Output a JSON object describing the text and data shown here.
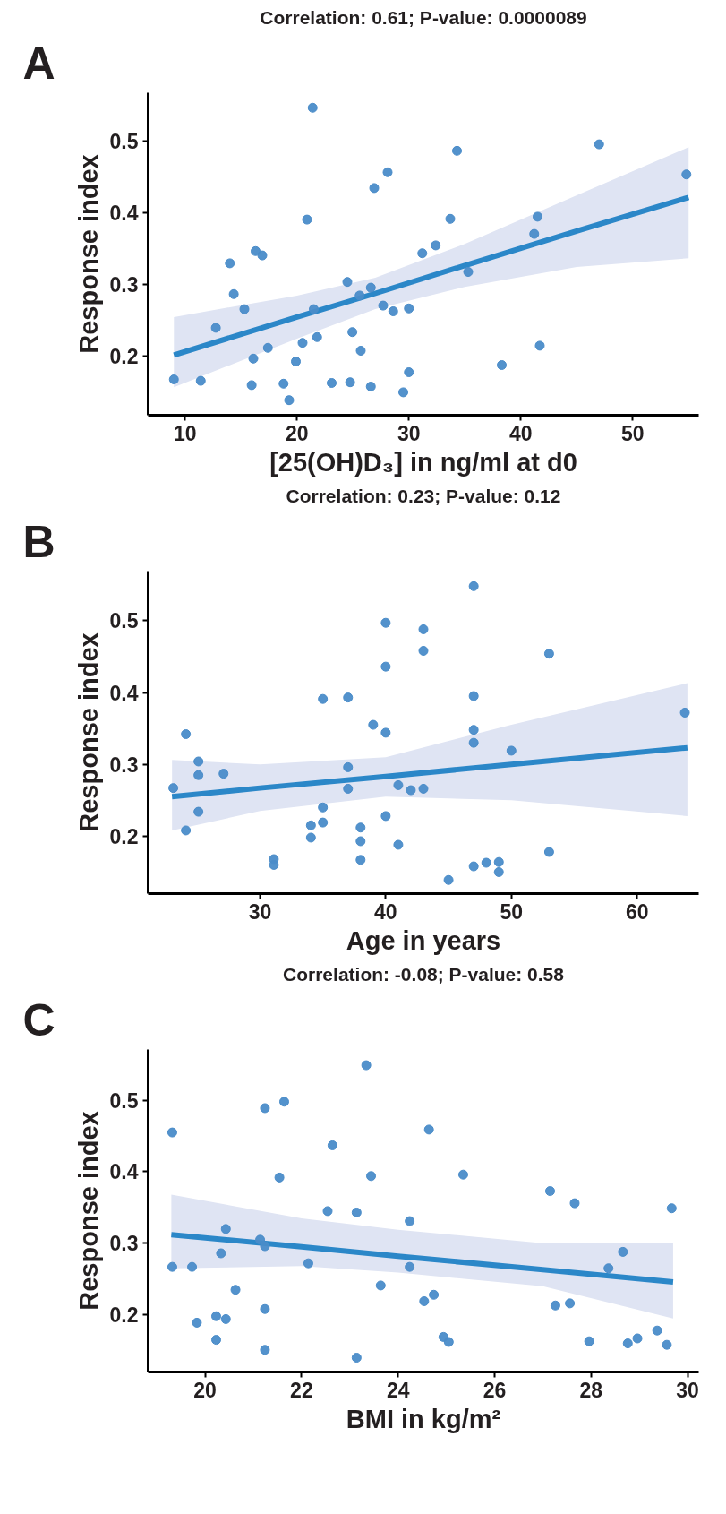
{
  "chart_data": [
    {
      "type": "scatter",
      "title": "Correlation: 0.61; P-value: 0.0000089",
      "xlabel": "[25(OH)D₃] in ng/ml at d0",
      "ylabel": "Response index",
      "annotations": [
        "A"
      ],
      "xlim": [
        6.7,
        55.9
      ],
      "ylim": [
        0.118,
        0.568
      ],
      "xticks": [
        10,
        20,
        30,
        40,
        50
      ],
      "yticks": [
        0.2,
        0.3,
        0.4,
        0.5
      ],
      "grid": false,
      "series": [
        {
          "marker": "circle",
          "color": "#4a8cc9",
          "x": [
            9.0,
            11.4,
            12.75,
            14.0,
            14.35,
            15.3,
            16.3,
            16.9,
            16.1,
            15.95,
            17.4,
            18.8,
            19.3,
            19.9,
            20.5,
            20.9,
            21.4,
            21.5,
            21.8,
            23.1,
            24.5,
            24.75,
            24.95,
            25.6,
            25.7,
            26.6,
            26.6,
            26.9,
            27.7,
            28.1,
            28.6,
            29.5,
            30.0,
            30.0,
            31.2,
            32.4,
            33.7,
            34.3,
            35.3,
            38.3,
            41.2,
            41.5,
            41.7,
            47.0,
            54.8
          ],
          "values": [
            0.168,
            0.166,
            0.24,
            0.33,
            0.287,
            0.266,
            0.347,
            0.341,
            0.197,
            0.16,
            0.212,
            0.162,
            0.139,
            0.193,
            0.219,
            0.391,
            0.547,
            0.266,
            0.227,
            0.163,
            0.304,
            0.164,
            0.234,
            0.285,
            0.208,
            0.296,
            0.158,
            0.435,
            0.271,
            0.457,
            0.263,
            0.15,
            0.267,
            0.178,
            0.344,
            0.355,
            0.392,
            0.487,
            0.318,
            0.188,
            0.371,
            0.395,
            0.215,
            0.496,
            0.454
          ]
        },
        {
          "type": "line",
          "color": "#2b87c8",
          "x": [
            9,
            20,
            27,
            35,
            45,
            55
          ],
          "values": [
            0.202,
            0.255,
            0.288,
            0.327,
            0.375,
            0.422
          ],
          "lower": [
            0.157,
            0.225,
            0.266,
            0.297,
            0.325,
            0.337
          ],
          "upper": [
            0.255,
            0.285,
            0.31,
            0.357,
            0.425,
            0.492
          ]
        }
      ]
    },
    {
      "type": "scatter",
      "title": "Correlation: 0.23; P-value: 0.12",
      "xlabel": "Age in years",
      "ylabel": "Response index",
      "annotations": [
        "B"
      ],
      "xlim": [
        21.1,
        64.9
      ],
      "ylim": [
        0.12,
        0.569
      ],
      "xticks": [
        30,
        40,
        50,
        60
      ],
      "yticks": [
        0.2,
        0.3,
        0.4,
        0.5
      ],
      "grid": false,
      "series": [
        {
          "marker": "circle",
          "color": "#4a8cc9",
          "x": [
            23.1,
            24.1,
            24.1,
            25.1,
            25.1,
            25.1,
            27.1,
            31.1,
            31.1,
            34.05,
            34.05,
            35.0,
            35.0,
            35.0,
            37.0,
            37.0,
            37.0,
            38.0,
            38.0,
            38.0,
            39.0,
            40.0,
            40.0,
            40.0,
            40.0,
            41.0,
            41.0,
            42.0,
            43.0,
            43.0,
            43.0,
            45.0,
            47.0,
            47.0,
            47.0,
            47.0,
            47.0,
            48.0,
            49.0,
            49.0,
            50.0,
            53.0,
            53.0,
            63.8
          ],
          "values": [
            0.267,
            0.342,
            0.208,
            0.304,
            0.285,
            0.234,
            0.287,
            0.168,
            0.16,
            0.215,
            0.198,
            0.391,
            0.24,
            0.219,
            0.393,
            0.296,
            0.266,
            0.212,
            0.193,
            0.167,
            0.355,
            0.497,
            0.436,
            0.344,
            0.228,
            0.271,
            0.188,
            0.264,
            0.488,
            0.458,
            0.266,
            0.139,
            0.548,
            0.395,
            0.348,
            0.33,
            0.158,
            0.163,
            0.164,
            0.15,
            0.319,
            0.454,
            0.178,
            0.372
          ]
        },
        {
          "type": "line",
          "color": "#2b87c8",
          "x": [
            23,
            30,
            40,
            50,
            64
          ],
          "values": [
            0.255,
            0.267,
            0.283,
            0.3,
            0.323
          ],
          "lower": [
            0.208,
            0.235,
            0.255,
            0.25,
            0.228
          ],
          "upper": [
            0.306,
            0.3,
            0.31,
            0.355,
            0.413
          ]
        }
      ]
    },
    {
      "type": "scatter",
      "title": "Correlation: -0.08; P-value: 0.58",
      "xlabel": "BMI in kg/m²",
      "ylabel": "Response index",
      "annotations": [
        "C"
      ],
      "xlim": [
        18.82,
        30.23
      ],
      "ylim": [
        0.12,
        0.571
      ],
      "xticks": [
        20,
        22,
        24,
        26,
        28,
        30
      ],
      "yticks": [
        0.2,
        0.3,
        0.4,
        0.5
      ],
      "grid": false,
      "series": [
        {
          "marker": "circle",
          "color": "#4a8cc9",
          "x": [
            19.32,
            19.32,
            19.73,
            19.83,
            20.23,
            20.23,
            20.33,
            20.43,
            20.43,
            20.63,
            21.14,
            21.24,
            21.24,
            21.24,
            21.24,
            21.54,
            21.64,
            22.14,
            22.54,
            22.64,
            23.14,
            23.14,
            23.34,
            23.44,
            23.64,
            24.24,
            24.24,
            24.54,
            24.64,
            24.74,
            24.94,
            25.05,
            25.35,
            27.15,
            27.26,
            27.56,
            27.66,
            27.96,
            28.36,
            28.66,
            28.76,
            28.96,
            29.37,
            29.57,
            29.67
          ],
          "values": [
            0.455,
            0.267,
            0.267,
            0.189,
            0.198,
            0.165,
            0.286,
            0.32,
            0.194,
            0.235,
            0.305,
            0.296,
            0.489,
            0.208,
            0.151,
            0.392,
            0.498,
            0.272,
            0.345,
            0.437,
            0.343,
            0.14,
            0.549,
            0.394,
            0.241,
            0.331,
            0.267,
            0.219,
            0.459,
            0.228,
            0.169,
            0.162,
            0.396,
            0.373,
            0.213,
            0.216,
            0.356,
            0.163,
            0.265,
            0.288,
            0.16,
            0.167,
            0.178,
            0.158,
            0.349
          ]
        },
        {
          "type": "line",
          "color": "#2b87c8",
          "x": [
            19.3,
            22,
            24,
            27,
            29.7
          ],
          "values": [
            0.312,
            0.295,
            0.282,
            0.263,
            0.246
          ],
          "lower": [
            0.265,
            0.268,
            0.259,
            0.24,
            0.195
          ],
          "upper": [
            0.368,
            0.335,
            0.319,
            0.3,
            0.301
          ]
        }
      ]
    }
  ]
}
